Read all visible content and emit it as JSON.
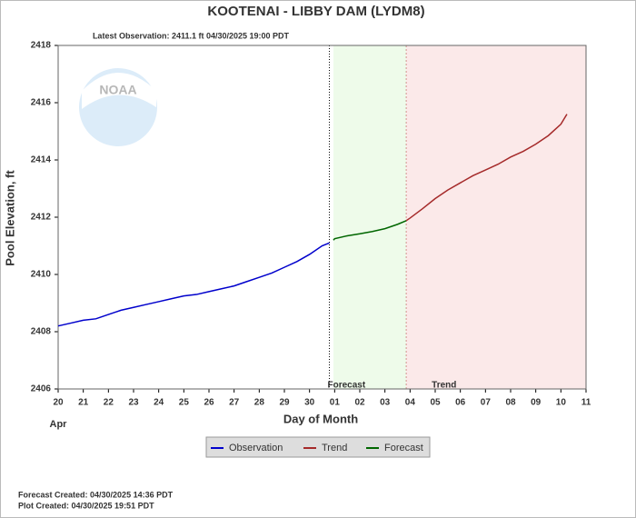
{
  "chart_data": {
    "type": "line",
    "title": "KOOTENAI - LIBBY DAM  (LYDM8)",
    "subtitle": "Latest Observation: 2411.1 ft 04/30/2025 19:00 PDT",
    "logo_text": "NOAA",
    "x_label": "Day of Month",
    "x_sublabel": "Apr",
    "y_label": "Pool Elevation, ft",
    "region_labels": [
      "Forecast",
      "Trend"
    ],
    "footer": [
      "Forecast Created: 04/30/2025 14:36 PDT",
      "Plot Created: 04/30/2025 19:51 PDT"
    ],
    "xlim": [
      20,
      41
    ],
    "xticks": [
      20,
      21,
      22,
      23,
      24,
      25,
      26,
      27,
      28,
      29,
      30,
      {
        "value": 31,
        "label": "01"
      },
      {
        "value": 32,
        "label": "02"
      },
      {
        "value": 33,
        "label": "03"
      },
      {
        "value": 34,
        "label": "04"
      },
      {
        "value": 35,
        "label": "05"
      },
      {
        "value": 36,
        "label": "06"
      },
      {
        "value": 37,
        "label": "07"
      },
      {
        "value": 38,
        "label": "08"
      },
      {
        "value": 39,
        "label": "09"
      },
      {
        "value": 40,
        "label": "10"
      },
      {
        "value": 41,
        "label": "11"
      }
    ],
    "ylim": [
      2406,
      2418
    ],
    "yticks": [
      2406,
      2408,
      2410,
      2412,
      2414,
      2416,
      2418
    ],
    "series": [
      {
        "name": "Observation",
        "color": "#0000cc",
        "x": [
          20,
          20.5,
          21,
          21.5,
          22,
          22.5,
          23,
          23.5,
          24,
          24.5,
          25,
          25.5,
          26,
          26.5,
          27,
          27.5,
          28,
          28.5,
          29,
          29.5,
          30,
          30.5,
          30.79
        ],
        "values": [
          2408.2,
          2408.3,
          2408.4,
          2408.45,
          2408.6,
          2408.75,
          2408.85,
          2408.95,
          2409.05,
          2409.15,
          2409.25,
          2409.3,
          2409.4,
          2409.5,
          2409.6,
          2409.75,
          2409.9,
          2410.05,
          2410.25,
          2410.45,
          2410.7,
          2411.0,
          2411.1
        ]
      },
      {
        "name": "Trend",
        "color": "#a52a2a",
        "x": [
          33.85,
          34,
          34.5,
          35,
          35.5,
          36,
          36.5,
          37,
          37.5,
          38,
          38.5,
          39,
          39.5,
          40,
          40.24
        ],
        "values": [
          2411.88,
          2411.97,
          2412.3,
          2412.65,
          2412.95,
          2413.2,
          2413.45,
          2413.65,
          2413.85,
          2414.1,
          2414.3,
          2414.55,
          2414.85,
          2415.25,
          2415.6
        ]
      },
      {
        "name": "Forecast",
        "color": "#006600",
        "x": [
          30.95,
          31,
          31.5,
          32,
          32.5,
          33,
          33.5,
          33.85
        ],
        "values": [
          2411.2,
          2411.25,
          2411.35,
          2411.42,
          2411.5,
          2411.6,
          2411.75,
          2411.88
        ]
      }
    ]
  }
}
